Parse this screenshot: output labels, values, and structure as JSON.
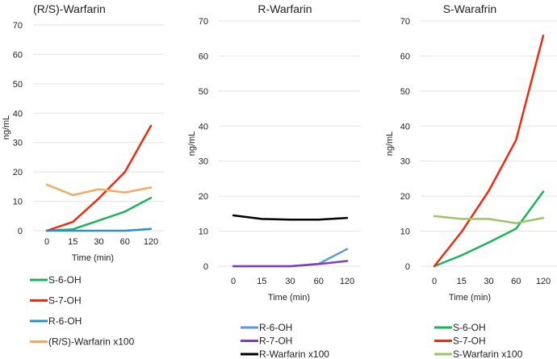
{
  "chart_data": [
    {
      "type": "line",
      "title": "(R/S)-Warfarin",
      "xlabel": "Time (min)",
      "ylabel": "ng/mL",
      "categories": [
        "0",
        "15",
        "30",
        "60",
        "120"
      ],
      "ylim": [
        0,
        70
      ],
      "yticks": [
        0,
        10,
        20,
        30,
        40,
        50,
        60,
        70
      ],
      "grid": true,
      "legend_position": "bottom",
      "series": [
        {
          "name": "S-6-OH",
          "color": "#1db35a",
          "values": [
            0,
            0.5,
            3.5,
            6.5,
            11.2
          ]
        },
        {
          "name": "S-7-OH",
          "color": "#f02a0e",
          "values": [
            0,
            3,
            11,
            20,
            35.7
          ]
        },
        {
          "name": "R-6-OH",
          "color": "#2a8fd0",
          "values": [
            0,
            0,
            0,
            0,
            0.6
          ]
        },
        {
          "name": "(R/S)-Warfarin x100",
          "color": "#f8a860",
          "values": [
            15.7,
            12.1,
            14.1,
            13,
            14.7
          ]
        }
      ]
    },
    {
      "type": "line",
      "title": "R-Warfarin",
      "xlabel": "Time (min)",
      "ylabel": "ng/mL",
      "categories": [
        "0",
        "15",
        "30",
        "60",
        "120"
      ],
      "ylim": [
        0,
        70
      ],
      "yticks": [
        0,
        10,
        20,
        30,
        40,
        50,
        60,
        70
      ],
      "grid": true,
      "legend_position": "bottom",
      "series": [
        {
          "name": "R-6-OH",
          "color": "#5b9bd5",
          "values": [
            0,
            0,
            0,
            0.7,
            4.9
          ]
        },
        {
          "name": "R-7-OH",
          "color": "#7e3fb8",
          "values": [
            0,
            0,
            0,
            0.6,
            1.5
          ]
        },
        {
          "name": "R-Warfarin x100",
          "color": "#000000",
          "values": [
            14.5,
            13.5,
            13.3,
            13.3,
            13.8
          ]
        }
      ]
    },
    {
      "type": "line",
      "title": "S-Warafrin",
      "xlabel": "Time (min)",
      "ylabel": "ng/mL",
      "categories": [
        "0",
        "15",
        "30",
        "60",
        "120"
      ],
      "ylim": [
        0,
        70
      ],
      "yticks": [
        0,
        10,
        20,
        30,
        40,
        50,
        60,
        70
      ],
      "grid": true,
      "legend_position": "bottom",
      "series": [
        {
          "name": "S-6-OH",
          "color": "#1db35a",
          "values": [
            0,
            3.1,
            6.8,
            10.7,
            21.3
          ]
        },
        {
          "name": "S-7-OH",
          "color": "#f02a0e",
          "values": [
            0,
            9.8,
            21.5,
            36,
            65.8
          ]
        },
        {
          "name": "S-Warfarin x100",
          "color": "#9dc46a",
          "values": [
            14.3,
            13.5,
            13.5,
            12.3,
            13.8
          ]
        }
      ]
    }
  ]
}
